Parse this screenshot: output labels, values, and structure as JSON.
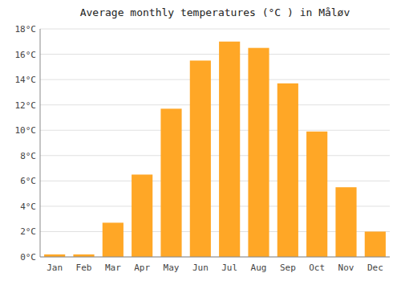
{
  "chart_data": {
    "type": "bar",
    "title": "Average monthly temperatures (°C ) in Måløv",
    "categories": [
      "Jan",
      "Feb",
      "Mar",
      "Apr",
      "May",
      "Jun",
      "Jul",
      "Aug",
      "Sep",
      "Oct",
      "Nov",
      "Dec"
    ],
    "values": [
      0.2,
      0.2,
      2.7,
      6.5,
      11.7,
      15.5,
      17.0,
      16.5,
      13.7,
      9.9,
      5.5,
      2.0
    ],
    "color": "#FFA726",
    "ylim": [
      0,
      18
    ],
    "yticks": [
      {
        "value": 0,
        "label": "0°C"
      },
      {
        "value": 2,
        "label": "2°C"
      },
      {
        "value": 4,
        "label": "4°C"
      },
      {
        "value": 6,
        "label": "6°C"
      },
      {
        "value": 8,
        "label": "8°C"
      },
      {
        "value": 10,
        "label": "10°C"
      },
      {
        "value": 12,
        "label": "12°C"
      },
      {
        "value": 14,
        "label": "14°C"
      },
      {
        "value": 16,
        "label": "16°C"
      },
      {
        "value": 18,
        "label": "18°C"
      }
    ],
    "grid": true
  }
}
